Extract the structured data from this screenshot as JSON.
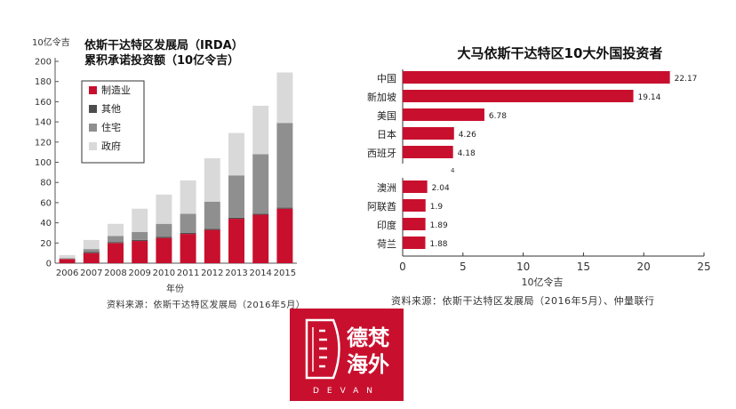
{
  "chart_data": [
    {
      "type": "bar",
      "stacked": true,
      "title_line1": "依斯干达特区发展局（IRDA）",
      "title_line2": "累积承诺投资额（10亿令吉）",
      "ylabel": "10亿令吉",
      "xlabel": "年份",
      "ylim": [
        0,
        200
      ],
      "yticks": [
        "0",
        "20",
        "40",
        "60",
        "80",
        "100",
        "120",
        "140",
        "160",
        "180",
        "200"
      ],
      "categories": [
        "2006",
        "2007",
        "2008",
        "2009",
        "2010",
        "2011",
        "2012",
        "2013",
        "2014",
        "2015"
      ],
      "series": [
        {
          "name": "制造业",
          "color": "#c8102e",
          "values": [
            4,
            10,
            20,
            22,
            25,
            29,
            33,
            44,
            48,
            54
          ]
        },
        {
          "name": "其他",
          "color": "#4d4d4d",
          "values": [
            0,
            1,
            1,
            1,
            1,
            1,
            1,
            1,
            1,
            1
          ]
        },
        {
          "name": "住宅",
          "color": "#8f8f8f",
          "values": [
            1,
            3,
            6,
            8,
            13,
            19,
            27,
            42,
            59,
            84
          ]
        },
        {
          "name": "政府",
          "color": "#d9d9d9",
          "values": [
            3,
            9,
            12,
            23,
            29,
            33,
            43,
            42,
            48,
            50
          ]
        }
      ],
      "legend_position": "top-left",
      "source": "资料来源：依斯干达特区发展局（2016年5月）"
    },
    {
      "type": "bar",
      "orientation": "horizontal",
      "title": "大马依斯干达特区10大外国投资者",
      "xlabel": "10亿令吉",
      "xlim": [
        0,
        25
      ],
      "xticks": [
        "0",
        "5",
        "10",
        "15",
        "20",
        "25"
      ],
      "bar_color": "#c8102e",
      "groups": [
        {
          "categories": [
            "中国",
            "新加坡",
            "美国",
            "日本",
            "西班牙"
          ],
          "values": [
            22.17,
            19.14,
            6.78,
            4.26,
            4.18
          ],
          "labels": [
            "22.17",
            "19.14",
            "6.78",
            "4.26",
            "4.18"
          ]
        },
        {
          "categories": [
            "澳洲",
            "阿联酋",
            "印度",
            "荷兰"
          ],
          "values": [
            2.04,
            1.9,
            1.89,
            1.88
          ],
          "labels": [
            "2.04",
            "1.9",
            "1.89",
            "1.88"
          ]
        }
      ],
      "stray_mark": "4",
      "source": "资料来源：依斯干达特区发展局（2016年5月）、仲量联行"
    }
  ],
  "logo": {
    "name_top": "德梵",
    "name_bottom": "海外",
    "latin": "DEVAN",
    "color": "#c8102e"
  }
}
